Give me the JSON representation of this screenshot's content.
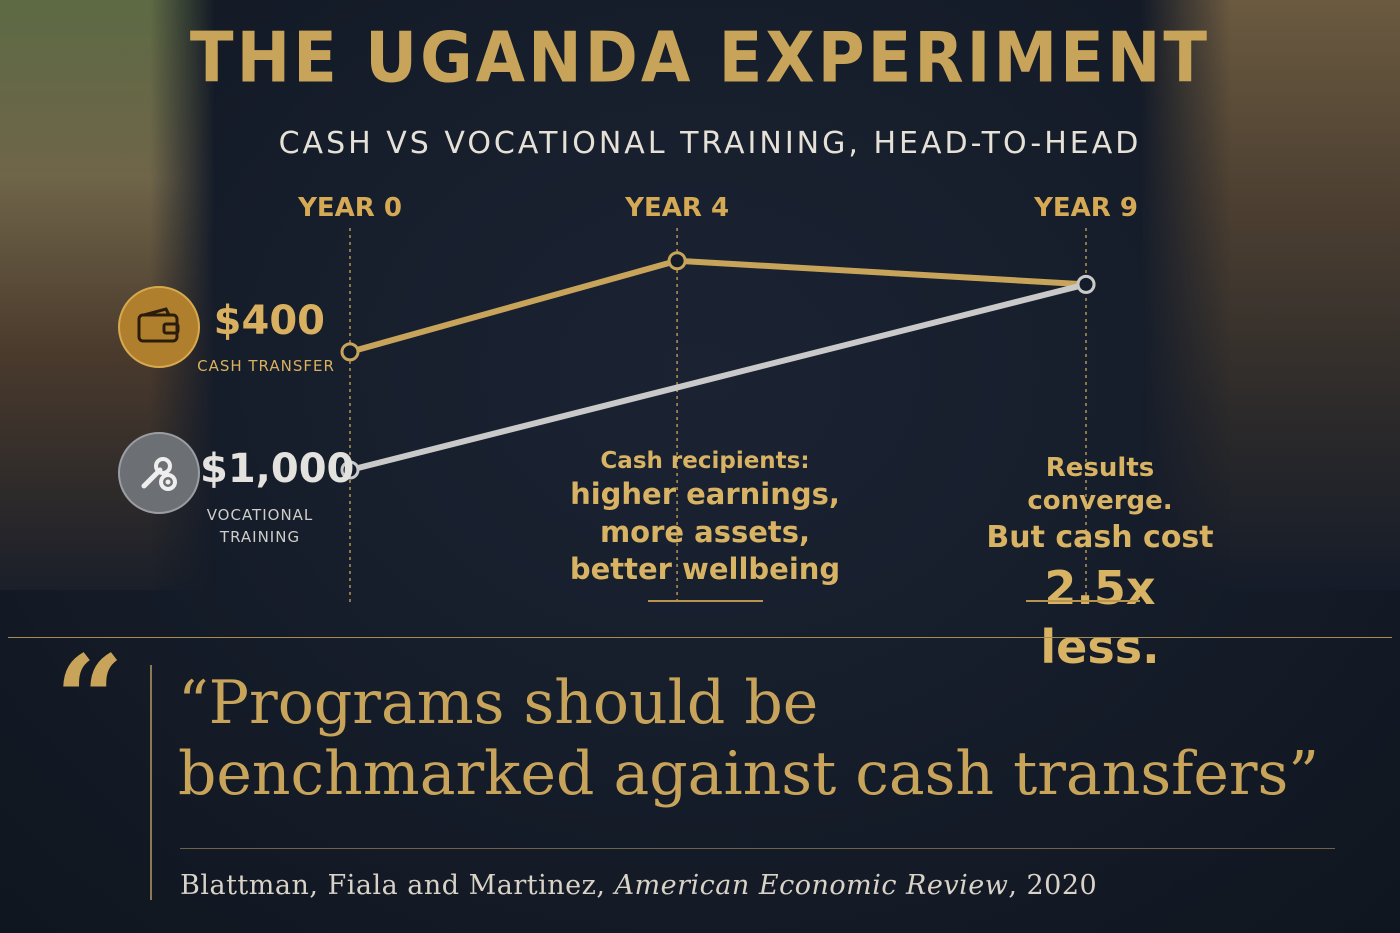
{
  "title": "THE UGANDA EXPERIMENT",
  "subtitle": "CASH VS VOCATIONAL TRAINING, HEAD-TO-HEAD",
  "chart_data": {
    "type": "line",
    "categories": [
      "YEAR 0",
      "YEAR 4",
      "YEAR 9"
    ],
    "x": [
      0,
      4,
      9
    ],
    "series": [
      {
        "name": "CASH TRANSFER",
        "cost": "$400",
        "values": [
          0.35,
          0.62,
          0.55
        ],
        "color": "#c8a45a",
        "icon": "wallet-icon"
      },
      {
        "name": "VOCATIONAL TRAINING",
        "cost": "$1,000",
        "values": [
          0.0,
          null,
          0.55
        ],
        "color": "#c9c9c9",
        "icon": "gear-wrench-icon"
      }
    ],
    "y_scale": "relative outcome level (unlabeled)",
    "ylim": [
      0,
      0.8
    ],
    "grid": "vertical dotted lines at each year",
    "annotations": [
      {
        "at": "YEAR 4",
        "text": [
          "Cash recipients:",
          "higher earnings,",
          "more assets,",
          "better wellbeing"
        ]
      },
      {
        "at": "YEAR 9",
        "text": [
          "Results converge.",
          "But cash cost",
          "2.5x less."
        ]
      }
    ]
  },
  "quote": {
    "mark": "“",
    "line1": "“Programs should be",
    "line2": "benchmarked against cash transfers”"
  },
  "citation": {
    "authors": "Blattman, Fiala and Martinez, ",
    "journal": "American Economic Review",
    "year": ", 2020"
  },
  "colors": {
    "gold": "#c8a45a",
    "grey": "#c9c9c9",
    "background": "#151c29"
  }
}
